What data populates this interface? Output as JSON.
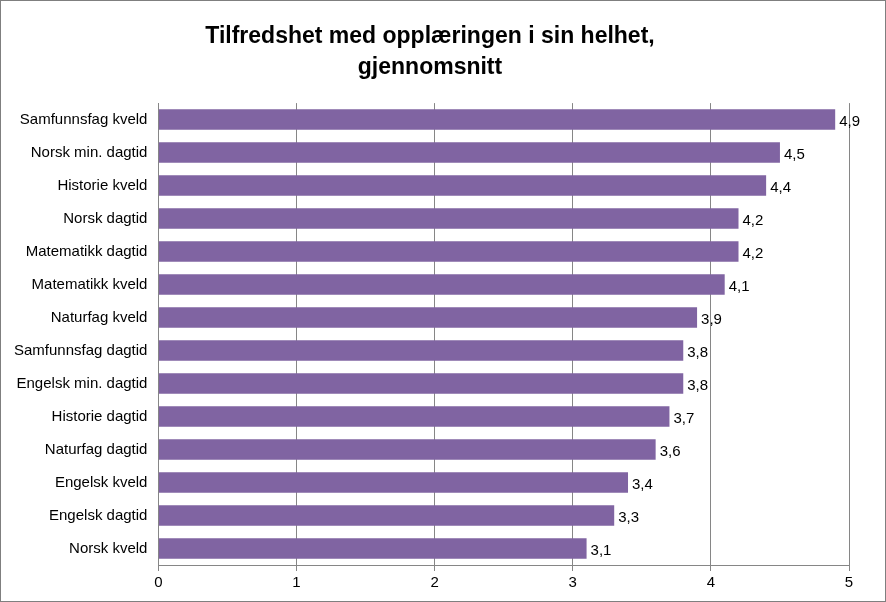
{
  "chart_data": {
    "type": "bar",
    "orientation": "horizontal",
    "title": [
      "Tilfredshet med opplæringen i sin helhet,",
      "gjennomsnitt"
    ],
    "categories": [
      "Samfunnsfag kveld",
      "Norsk min. dagtid",
      "Historie kveld",
      "Norsk dagtid",
      "Matematikk dagtid",
      "Matematikk kveld",
      "Naturfag kveld",
      "Samfunnsfag dagtid",
      "Engelsk min. dagtid",
      "Historie dagtid",
      "Naturfag dagtid",
      "Engelsk kveld",
      "Engelsk dagtid",
      "Norsk kveld"
    ],
    "values": [
      4.9,
      4.5,
      4.4,
      4.2,
      4.2,
      4.1,
      3.9,
      3.8,
      3.8,
      3.7,
      3.6,
      3.4,
      3.3,
      3.1
    ],
    "value_labels": [
      "4,9",
      "4,5",
      "4,4",
      "4,2",
      "4,2",
      "4,1",
      "3,9",
      "3,8",
      "3,8",
      "3,7",
      "3,6",
      "3,4",
      "3,3",
      "3,1"
    ],
    "data_labels": true,
    "color": "#8064a2",
    "xlim": [
      0,
      5
    ],
    "xticks": [
      0,
      1,
      2,
      3,
      4,
      5
    ],
    "grid": true
  }
}
